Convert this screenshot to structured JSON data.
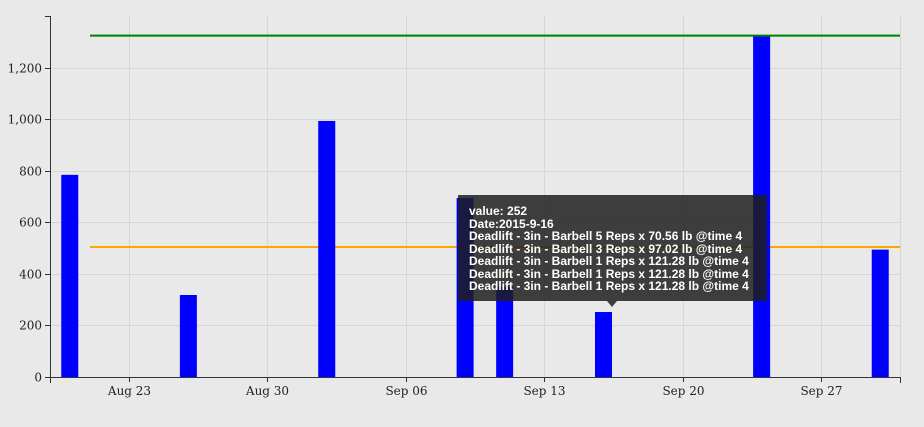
{
  "chart_data": {
    "type": "bar",
    "title": "",
    "xlabel": "",
    "ylabel": "",
    "ylim": [
      0,
      1400
    ],
    "yticks": [
      0,
      200,
      400,
      600,
      800,
      1000,
      1200
    ],
    "ytick_labels": [
      "0",
      "200",
      "400",
      "600",
      "800",
      "1,000",
      "1,200"
    ],
    "xticks": [
      "2015-08-23",
      "2015-08-30",
      "2015-09-06",
      "2015-09-13",
      "2015-09-20",
      "2015-09-27"
    ],
    "xtick_labels": [
      "Aug 23",
      "Aug 30",
      "Sep 06",
      "Sep 13",
      "Sep 20",
      "Sep 27"
    ],
    "xlim": [
      "2015-08-19",
      "2015-10-01"
    ],
    "grid": true,
    "bar_color": "#0000ff",
    "bars": [
      {
        "date": "2015-08-20",
        "value": 784
      },
      {
        "date": "2015-08-26",
        "value": 318
      },
      {
        "date": "2015-09-02",
        "value": 993
      },
      {
        "date": "2015-09-09",
        "value": 694
      },
      {
        "date": "2015-09-11",
        "value": 350
      },
      {
        "date": "2015-09-16",
        "value": 252
      },
      {
        "date": "2015-09-24",
        "value": 1324
      },
      {
        "date": "2015-09-30",
        "value": 494
      }
    ],
    "reference_lines": [
      {
        "value": 1324,
        "color": "#008000"
      },
      {
        "value": 504,
        "color": "#ffa500"
      }
    ]
  },
  "tooltip": {
    "lines": [
      "value: 252",
      "Date:2015-9-16",
      "Deadlift - 3in - Barbell 5 Reps x 70.56 lb @time 4",
      "Deadlift - 3in - Barbell 3 Reps x 97.02 lb @time 4",
      "Deadlift - 3in - Barbell 1 Reps x 121.28 lb @time 4",
      "Deadlift - 3in - Barbell 1 Reps x 121.28 lb @time 4",
      "Deadlift - 3in - Barbell 1 Reps x 121.28 lb @time 4"
    ]
  }
}
